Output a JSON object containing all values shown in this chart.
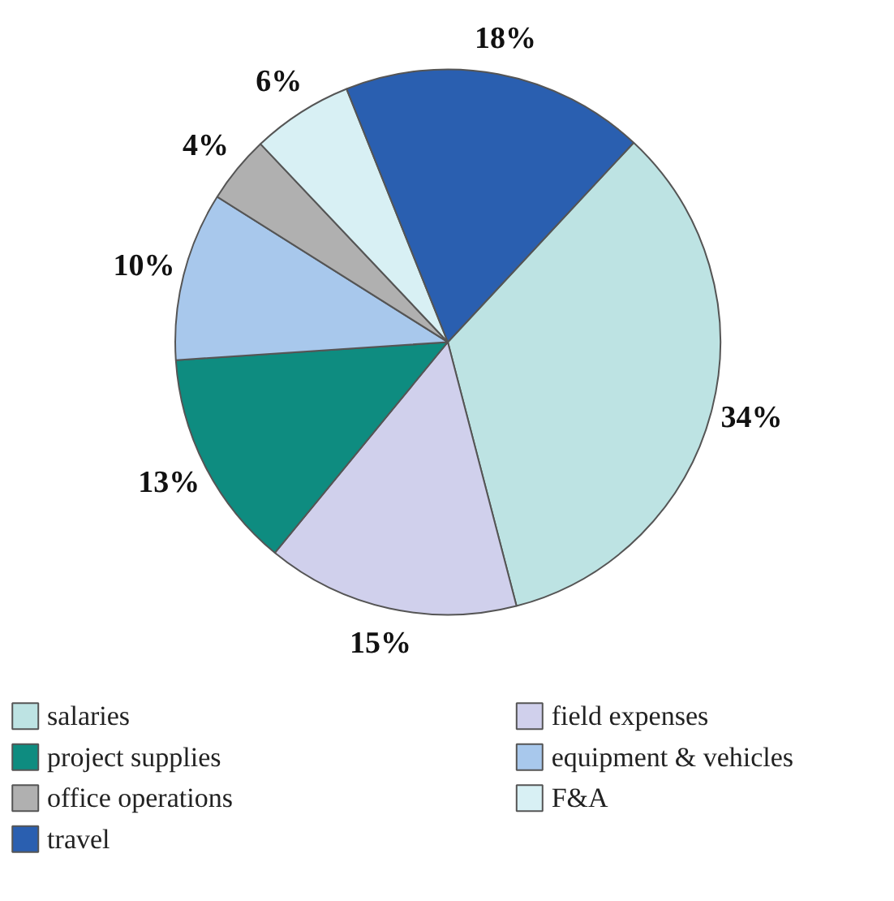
{
  "chart_data": {
    "type": "pie",
    "categories": [
      "salaries",
      "field expenses",
      "project supplies",
      "equipment & vehicles",
      "office operations",
      "F&A",
      "travel"
    ],
    "values": [
      34,
      15,
      13,
      10,
      4,
      6,
      18
    ],
    "colors": [
      "#bde3e3",
      "#d0d0ec",
      "#0e8c80",
      "#a8c8ec",
      "#b0b0b0",
      "#d8f0f4",
      "#2a5fb0"
    ],
    "value_labels": [
      "34%",
      "15%",
      "13%",
      "10%",
      "4%",
      "6%",
      "18%"
    ],
    "legend": "bottom"
  }
}
